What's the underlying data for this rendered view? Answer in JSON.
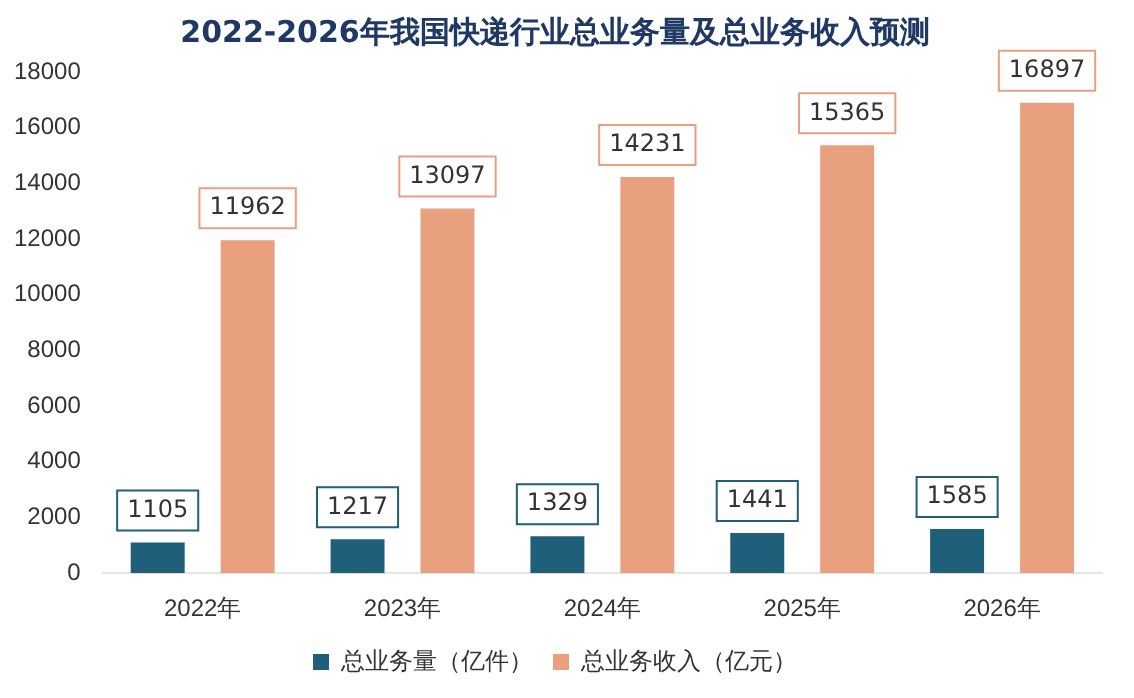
{
  "chart_data": {
    "type": "bar",
    "title": "2022-2026年我国快递行业总业务量及总业务收入预测",
    "categories": [
      "2022年",
      "2023年",
      "2024年",
      "2025年",
      "2026年"
    ],
    "series": [
      {
        "name": "总业务量（亿件）",
        "color": "#1f5f7a",
        "values": [
          1105,
          1217,
          1329,
          1441,
          1585
        ]
      },
      {
        "name": "总业务收入（亿元）",
        "color": "#e9a07f",
        "values": [
          11962,
          13097,
          14231,
          15365,
          16897
        ]
      }
    ],
    "ylim": [
      0,
      18000
    ],
    "yticks": [
      0,
      2000,
      4000,
      6000,
      8000,
      10000,
      12000,
      14000,
      16000,
      18000
    ],
    "grid": false,
    "legend": "bottom",
    "data_labels": true
  }
}
